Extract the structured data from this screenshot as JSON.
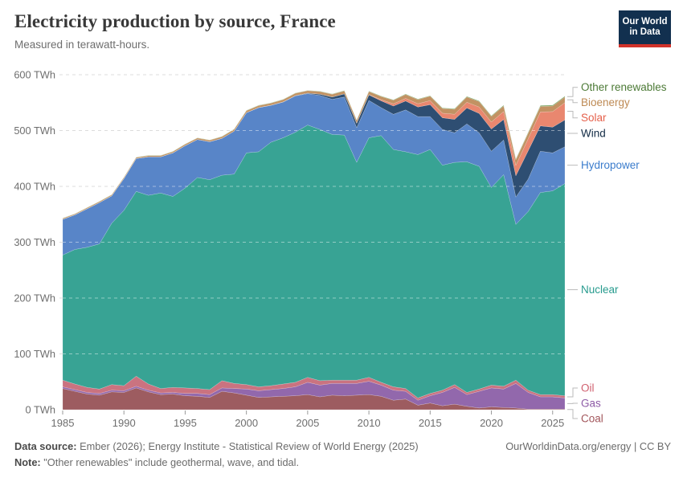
{
  "header": {
    "title": "Electricity production by source, France",
    "subtitle": "Measured in terawatt-hours."
  },
  "logo": {
    "line1": "Our World",
    "line2": "in Data"
  },
  "footer": {
    "source_label": "Data source:",
    "source_text": "Ember (2026); Energy Institute - Statistical Review of World Energy (2025)",
    "link_text": "OurWorldinData.org/energy | CC BY",
    "note_label": "Note:",
    "note_text": "\"Other renewables\" include geothermal, wave, and tidal."
  },
  "chart_data": {
    "type": "area",
    "stacked": true,
    "title": "Electricity production by source, France",
    "unit": "TWh",
    "grid": true,
    "legend_position": "right",
    "ylim": [
      0,
      600
    ],
    "y_ticks": [
      0,
      100,
      200,
      300,
      400,
      500,
      600
    ],
    "y_tick_suffix": " TWh",
    "x_ticks": [
      1985,
      1990,
      1995,
      2000,
      2005,
      2010,
      2015,
      2020,
      2025
    ],
    "x": [
      1985,
      1986,
      1987,
      1988,
      1989,
      1990,
      1991,
      1992,
      1993,
      1994,
      1995,
      1996,
      1997,
      1998,
      1999,
      2000,
      2001,
      2002,
      2003,
      2004,
      2005,
      2006,
      2007,
      2008,
      2009,
      2010,
      2011,
      2012,
      2013,
      2014,
      2015,
      2016,
      2017,
      2018,
      2019,
      2020,
      2021,
      2022,
      2023,
      2024,
      2025,
      2026
    ],
    "series": [
      {
        "name": "Coal",
        "color": "#9d5c60",
        "label_color": "#a2565b",
        "values": [
          38,
          33,
          28,
          26,
          32,
          31,
          39,
          32,
          27,
          28,
          25,
          24,
          22,
          33,
          30,
          26,
          22,
          23,
          24,
          25,
          27,
          23,
          26,
          25,
          26,
          27,
          24,
          17,
          19,
          8,
          12,
          7,
          10,
          6,
          3,
          5,
          4,
          3,
          1,
          1,
          1,
          1
        ]
      },
      {
        "name": "Gas",
        "color": "#9268ac",
        "label_color": "#8d5ba6",
        "values": [
          3,
          3,
          3,
          3,
          3,
          3,
          3,
          3,
          3,
          3,
          4,
          5,
          5,
          6,
          8,
          11,
          12,
          13,
          14,
          16,
          22,
          21,
          21,
          22,
          21,
          24,
          20,
          18,
          14,
          9,
          13,
          24,
          30,
          21,
          30,
          34,
          33,
          44,
          30,
          22,
          22,
          20
        ]
      },
      {
        "name": "Oil",
        "color": "#ca7380",
        "label_color": "#d0606f",
        "values": [
          12,
          10,
          9,
          8,
          10,
          9,
          18,
          11,
          8,
          9,
          10,
          9,
          9,
          13,
          9,
          8,
          7,
          7,
          8,
          8,
          9,
          8,
          6,
          6,
          6,
          7,
          5,
          6,
          5,
          4,
          4,
          4,
          5,
          4,
          4,
          5,
          5,
          6,
          4,
          4,
          4,
          4
        ]
      },
      {
        "name": "Nuclear",
        "color": "#38a394",
        "label_color": "#279b8e",
        "values": [
          224,
          241,
          251,
          260,
          289,
          314,
          331,
          338,
          350,
          342,
          358,
          378,
          376,
          368,
          375,
          415,
          421,
          436,
          441,
          448,
          452,
          450,
          440,
          439,
          390,
          429,
          442,
          425,
          424,
          436,
          437,
          403,
          398,
          413,
          399,
          354,
          379,
          279,
          320,
          362,
          365,
          380
        ]
      },
      {
        "name": "Hydropower",
        "color": "#5885c8",
        "label_color": "#3b7ccc",
        "values": [
          64,
          62,
          69,
          74,
          49,
          57,
          59,
          69,
          65,
          78,
          76,
          68,
          68,
          66,
          77,
          72,
          79,
          66,
          64,
          65,
          56,
          61,
          63,
          68,
          62,
          67,
          50,
          63,
          75,
          68,
          59,
          64,
          53,
          68,
          60,
          65,
          62,
          49,
          58,
          74,
          68,
          66
        ]
      },
      {
        "name": "Wind",
        "color": "#2e4e72",
        "label_color": "#122b45",
        "values": [
          0,
          0,
          0,
          0,
          0,
          0,
          0,
          0,
          0,
          0,
          0,
          0,
          0,
          0,
          0,
          0.1,
          0.1,
          0.3,
          0.4,
          0.6,
          1,
          2.2,
          4,
          5.7,
          7.9,
          9.9,
          12.2,
          14.9,
          16,
          17.2,
          21.4,
          20.9,
          24,
          28.5,
          34.6,
          39.7,
          36.8,
          38.1,
          50.8,
          45.4,
          46,
          48
        ]
      },
      {
        "name": "Solar",
        "color": "#e9876f",
        "label_color": "#e5604b",
        "values": [
          0,
          0,
          0,
          0,
          0,
          0,
          0,
          0,
          0,
          0,
          0,
          0,
          0,
          0,
          0,
          0,
          0,
          0,
          0,
          0,
          0,
          0,
          0,
          0.1,
          0.2,
          0.6,
          2,
          4,
          4.6,
          5.9,
          7.3,
          8.2,
          9.2,
          10.2,
          11.6,
          12.6,
          14.3,
          18.6,
          21.5,
          24.8,
          28,
          31
        ]
      },
      {
        "name": "Bioenergy",
        "color": "#c29263",
        "label_color": "#be8a54",
        "values": [
          1.7,
          1.7,
          1.8,
          1.8,
          1.9,
          2,
          2,
          2.1,
          2.2,
          2.3,
          2.5,
          2.6,
          2.8,
          3,
          3.2,
          3.5,
          3.7,
          3.8,
          4,
          4.2,
          4.5,
          4.8,
          5,
          5.2,
          5.3,
          5.5,
          6,
          6.5,
          7,
          7.5,
          8,
          8.5,
          9,
          9.5,
          9.8,
          10,
          10,
          10,
          10,
          10,
          10,
          10
        ]
      },
      {
        "name": "Other renewables",
        "color": "#6d9c53",
        "label_color": "#4c7a36",
        "values": [
          0.4,
          0.4,
          0.4,
          0.4,
          0.4,
          0.4,
          0.4,
          0.4,
          0.4,
          0.4,
          0.4,
          0.4,
          0.4,
          0.5,
          0.5,
          0.5,
          0.5,
          0.5,
          0.5,
          0.5,
          0.5,
          0.5,
          0.6,
          0.6,
          0.6,
          0.6,
          0.7,
          0.7,
          0.8,
          0.8,
          0.8,
          0.9,
          1,
          1,
          1.1,
          1.2,
          1.2,
          1.3,
          1.4,
          1.5,
          1.5,
          1.5
        ]
      }
    ]
  }
}
